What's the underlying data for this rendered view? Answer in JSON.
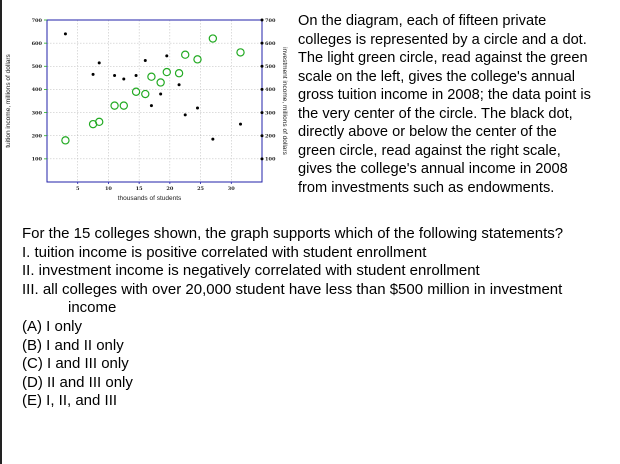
{
  "intro_text": "On the diagram, each of fifteen private colleges is represented by a circle and a dot. The light green circle, read against the green scale on the left, gives the college's annual gross tuition income in 2008; the data point is the very center of the circle. The black dot, directly above or below the center of the green circle, read against the right scale, gives the college's annual income in 2008 from investments such as endowments.",
  "question": {
    "stem": "For the 15 colleges shown, the graph supports which of the following statements?",
    "statements": [
      "I. tuition income is positive correlated with student enrollment",
      "II.  investment income is negatively correlated with student enrollment",
      "III. all colleges with over 20,000 student have less than $500 million in investment"
    ],
    "statement_3_continuation": "income",
    "options": [
      "(A) I only",
      "(B) I and II only",
      "(C) I and III only",
      "(D) II and III only",
      "(E) I, II, and III"
    ]
  },
  "chart_data": {
    "type": "scatter",
    "xlabel": "thousands of students",
    "ylabel_left": "tuition income, millions of dollars",
    "ylabel_right": "investment income, millions of dollars",
    "xlim": [
      0,
      35
    ],
    "ylim": [
      0,
      700
    ],
    "x_ticks": [
      5,
      10,
      15,
      20,
      25,
      30
    ],
    "y_ticks_left": [
      100,
      200,
      300,
      400,
      500,
      600,
      700
    ],
    "y_ticks_right": [
      100,
      200,
      300,
      400,
      500,
      600,
      700
    ],
    "colors": {
      "tuition": "#22aa22",
      "investment": "#000000"
    },
    "series": [
      {
        "name": "tuition",
        "marker": "circle",
        "points": [
          {
            "x": 3,
            "y": 180
          },
          {
            "x": 7.5,
            "y": 250
          },
          {
            "x": 8.5,
            "y": 260
          },
          {
            "x": 11,
            "y": 330
          },
          {
            "x": 12.5,
            "y": 330
          },
          {
            "x": 14.5,
            "y": 390
          },
          {
            "x": 16,
            "y": 380
          },
          {
            "x": 17,
            "y": 455
          },
          {
            "x": 18.5,
            "y": 430
          },
          {
            "x": 19.5,
            "y": 475
          },
          {
            "x": 21.5,
            "y": 470
          },
          {
            "x": 22.5,
            "y": 550
          },
          {
            "x": 24.5,
            "y": 530
          },
          {
            "x": 27,
            "y": 620
          },
          {
            "x": 31.5,
            "y": 560
          }
        ]
      },
      {
        "name": "investment",
        "marker": "dot",
        "points": [
          {
            "x": 3,
            "y": 640
          },
          {
            "x": 7.5,
            "y": 465
          },
          {
            "x": 8.5,
            "y": 515
          },
          {
            "x": 11,
            "y": 460
          },
          {
            "x": 12.5,
            "y": 445
          },
          {
            "x": 14.5,
            "y": 460
          },
          {
            "x": 16,
            "y": 525
          },
          {
            "x": 17,
            "y": 330
          },
          {
            "x": 18.5,
            "y": 380
          },
          {
            "x": 19.5,
            "y": 545
          },
          {
            "x": 21.5,
            "y": 420
          },
          {
            "x": 22.5,
            "y": 290
          },
          {
            "x": 24.5,
            "y": 320
          },
          {
            "x": 27,
            "y": 185
          },
          {
            "x": 31.5,
            "y": 250
          }
        ]
      }
    ]
  }
}
